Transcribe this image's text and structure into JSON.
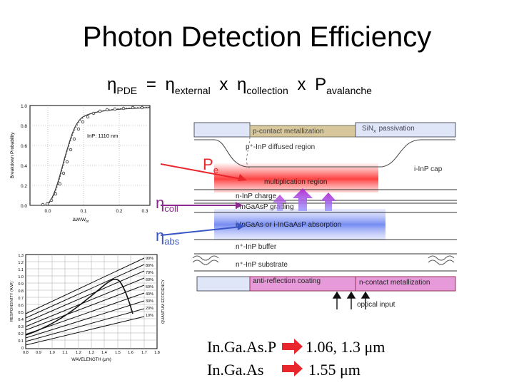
{
  "title": "Photon Detection Efficiency",
  "formula": {
    "eta_symbol": "η",
    "pde_sub": "PDE",
    "equals": "=",
    "ext_sub": "external",
    "times": "x",
    "coll_sub": "collection",
    "p_letter": "P",
    "aval_sub": "avalanche"
  },
  "breakdown_plot": {
    "ylabel": "Breakdown Probability",
    "xlabel": "ΔW/W",
    "xlabel_sub": "br",
    "annotation": "InP: 1110 nm",
    "yticks": [
      "1.0",
      "0.8",
      "0.6",
      "0.4",
      "0.2",
      "0.0"
    ],
    "xticks": [
      "0.0",
      "0.1",
      "0.2",
      "0.3"
    ]
  },
  "responsivity_plot": {
    "ylabel_left": "RESPONSIVITY (A/W)",
    "ylabel_right": "QUANTUM EFFICIENCY",
    "xlabel": "WAVELENGTH (μm)",
    "yticks": [
      "1.3",
      "1.2",
      "1.1",
      "1.0",
      "0.9",
      "0.8",
      "0.7",
      "0.6",
      "0.5",
      "0.4",
      "0.3",
      "0.2",
      "0.1",
      "0"
    ],
    "xticks": [
      "0.8",
      "0.9",
      "1.0",
      "1.1",
      "1.2",
      "1.3",
      "1.4",
      "1.5",
      "1.6",
      "1.7",
      "1.8"
    ],
    "qe_labels": [
      "90%",
      "80%",
      "70%",
      "60%",
      "50%",
      "40%",
      "30%",
      "20%",
      "10%"
    ]
  },
  "annotations": {
    "pe_main": "P",
    "pe_sub": "e",
    "eta": "η",
    "coll_sub": "coll",
    "abs_sub": "abs"
  },
  "layers": {
    "p_contact": "p-contact metallization",
    "sin_passivation": "SiN",
    "sin_sub": "x",
    "sin_passivation_rest": "passivation",
    "diffused": "p⁺-InP diffused region",
    "inp_cap": "i-InP cap",
    "multiplication": "multiplication region",
    "charge": "n-InP charge",
    "grading": "i-InGaAsP grading",
    "absorption": "i-InGaAs or i-InGaAsP absorption",
    "buffer": "n⁺-InP buffer",
    "substrate": "n⁺-InP substrate",
    "ar_coating": "anti-reflection coating",
    "n_contact": "n-contact metallization",
    "optical_input": "optical input"
  },
  "materials": [
    {
      "name": "In.Ga.As.P",
      "value": "1.06, 1.3",
      "unit": "μm"
    },
    {
      "name": "In.Ga.As",
      "value": "1.55",
      "unit": "μm"
    }
  ],
  "colors": {
    "pe_red": "#e8262c",
    "coll_purple": "#8b2a8e",
    "abs_blue": "#3a56c4",
    "multiplication_red": "#f04040",
    "contact_tan": "#d8c79a",
    "sin_blue": "#dfe6f7",
    "ar_pink": "#e79ad9",
    "absorption_blue": "#7a8ff0"
  }
}
